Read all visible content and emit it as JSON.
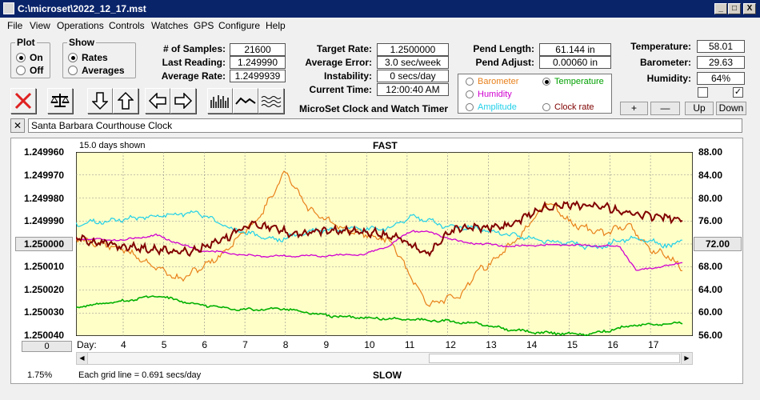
{
  "window": {
    "title": "C:\\microset\\2022_12_17.mst",
    "min_label": "_",
    "max_label": "□",
    "close_label": "X"
  },
  "menu": [
    "File",
    "View",
    "Operations",
    "Controls",
    "Watches",
    "GPS",
    "Configure",
    "Help"
  ],
  "plot_group": {
    "title": "Plot",
    "options": [
      {
        "label": "On",
        "selected": true
      },
      {
        "label": "Off",
        "selected": false
      }
    ]
  },
  "show_group": {
    "title": "Show",
    "options": [
      {
        "label": "Rates",
        "selected": true
      },
      {
        "label": "Averages",
        "selected": false
      }
    ]
  },
  "stats": {
    "samples_label": "# of Samples:",
    "samples": "21600",
    "last_label": "Last Reading:",
    "last": "1.249990",
    "avg_label": "Average Rate:",
    "avg": "1.2499939",
    "target_label": "Target Rate:",
    "target": "1.2500000",
    "err_label": "Average Error:",
    "err": "3.0 sec/week",
    "instab_label": "Instability:",
    "instab": "0 secs/day",
    "time_label": "Current Time:",
    "time": "12:00:40 AM",
    "pend_len_label": "Pend Length:",
    "pend_len": "61.144 in",
    "pend_adj_label": "Pend Adjust:",
    "pend_adj": "0.00060 in",
    "temp_label": "Temperature:",
    "temp": "58.01",
    "baro_label": "Barometer:",
    "baro": "29.63",
    "hum_label": "Humidity:",
    "hum": "64%"
  },
  "app_caption": "MicroSet Clock and Watch Timer",
  "legend": [
    {
      "label": "Barometer",
      "color": "#e8801a",
      "selected": false
    },
    {
      "label": "Temperature",
      "color": "#00a000",
      "selected": true
    },
    {
      "label": "Humidity",
      "color": "#d000d0",
      "selected": false
    },
    {
      "label": "Amplitude",
      "color": "#20d0e8",
      "selected": false
    },
    {
      "label": "Clock rate",
      "color": "#800000",
      "selected": false
    }
  ],
  "env_buttons": {
    "plus": "+",
    "minus": "—",
    "up": "Up",
    "down": "Down"
  },
  "clock_name": "Santa Barbara Courthouse Clock",
  "clear_label": "✕",
  "plot": {
    "days_shown": "15.0 days shown",
    "fast": "FAST",
    "slow": "SLOW",
    "center_rate": "1.250000",
    "center_temp": "72.00",
    "offset_btn": "0",
    "day_label": "Day:",
    "zoom": "1.75%",
    "grid_note": "Each grid line = 0.691 secs/day",
    "left_axis": [
      "1.249960",
      "1.249970",
      "1.249980",
      "1.249990",
      "1.250010",
      "1.250020",
      "1.250030",
      "1.250040"
    ],
    "right_axis": [
      "88.00",
      "84.00",
      "80.00",
      "76.00",
      "68.00",
      "64.00",
      "60.00",
      "56.00"
    ],
    "days": [
      "4",
      "5",
      "6",
      "7",
      "8",
      "9",
      "10",
      "11",
      "12",
      "13",
      "14",
      "15",
      "16",
      "17"
    ]
  }
}
